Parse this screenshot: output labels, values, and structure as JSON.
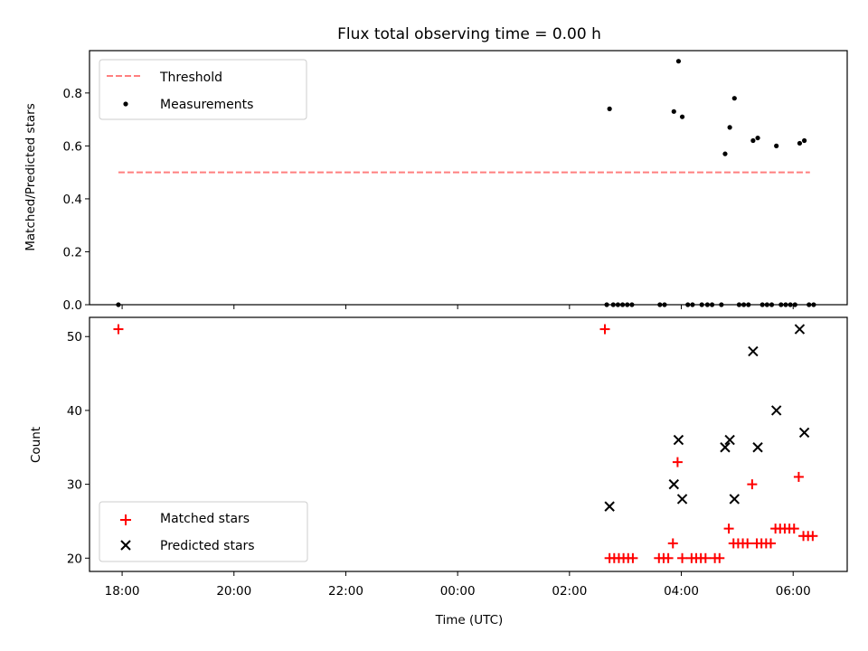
{
  "chart_data": [
    {
      "type": "scatter",
      "title": "Flux total observing time = 0.00 h",
      "xlabel": "",
      "ylabel": "Matched/Predicted stars",
      "xlim": [
        "17:25",
        "06:58"
      ],
      "ylim": [
        0,
        0.96
      ],
      "yticks": [
        0.0,
        0.2,
        0.4,
        0.6,
        0.8
      ],
      "ytick_labels": [
        "0.0",
        "0.2",
        "0.4",
        "0.6",
        "0.8"
      ],
      "grid": false,
      "legend": "upper-left",
      "threshold": {
        "name": "Threshold",
        "y": 0.5,
        "x": [
          "17:56",
          "06:18"
        ],
        "color": "#ff7f7f"
      },
      "series": [
        {
          "name": "Measurements",
          "color": "#000000",
          "marker": "dot",
          "points": [
            [
              "17:56",
              0
            ],
            [
              "02:40",
              0
            ],
            [
              "02:43",
              0.74
            ],
            [
              "02:47",
              0
            ],
            [
              "02:52",
              0
            ],
            [
              "02:57",
              0
            ],
            [
              "03:02",
              0
            ],
            [
              "03:07",
              0
            ],
            [
              "03:37",
              0
            ],
            [
              "03:42",
              0
            ],
            [
              "03:52",
              0.73
            ],
            [
              "03:57",
              0.92
            ],
            [
              "04:01",
              0.71
            ],
            [
              "04:07",
              0
            ],
            [
              "04:12",
              0
            ],
            [
              "04:22",
              0
            ],
            [
              "04:28",
              0
            ],
            [
              "04:33",
              0
            ],
            [
              "04:43",
              0
            ],
            [
              "04:47",
              0.57
            ],
            [
              "04:52",
              0.67
            ],
            [
              "04:57",
              0.78
            ],
            [
              "05:02",
              0
            ],
            [
              "05:07",
              0
            ],
            [
              "05:12",
              0
            ],
            [
              "05:17",
              0.62
            ],
            [
              "05:22",
              0.63
            ],
            [
              "05:27",
              0
            ],
            [
              "05:32",
              0
            ],
            [
              "05:37",
              0
            ],
            [
              "05:42",
              0.6
            ],
            [
              "05:47",
              0
            ],
            [
              "05:52",
              0
            ],
            [
              "05:57",
              0
            ],
            [
              "06:02",
              0
            ],
            [
              "06:07",
              0.61
            ],
            [
              "06:12",
              0.62
            ],
            [
              "06:17",
              0
            ],
            [
              "06:22",
              0
            ]
          ]
        }
      ]
    },
    {
      "type": "scatter",
      "title": "",
      "xlabel": "Time (UTC)",
      "ylabel": "Count",
      "xlim": [
        "17:25",
        "06:58"
      ],
      "ylim": [
        18.2,
        52.6
      ],
      "xticks": [
        "18:00",
        "20:00",
        "22:00",
        "00:00",
        "02:00",
        "04:00",
        "06:00"
      ],
      "yticks": [
        20,
        30,
        40,
        50
      ],
      "ytick_labels": [
        "20",
        "30",
        "40",
        "50"
      ],
      "grid": false,
      "legend": "lower-left",
      "series": [
        {
          "name": "Matched stars",
          "color": "#ff0000",
          "marker": "plus",
          "points": [
            [
              "17:56",
              51
            ],
            [
              "02:38",
              51
            ],
            [
              "02:43",
              20
            ],
            [
              "02:48",
              20
            ],
            [
              "02:53",
              20
            ],
            [
              "02:58",
              20
            ],
            [
              "03:03",
              20
            ],
            [
              "03:08",
              20
            ],
            [
              "03:36",
              20
            ],
            [
              "03:41",
              20
            ],
            [
              "03:46",
              20
            ],
            [
              "03:51",
              22
            ],
            [
              "03:56",
              33
            ],
            [
              "04:01",
              20
            ],
            [
              "04:11",
              20
            ],
            [
              "04:16",
              20
            ],
            [
              "04:21",
              20
            ],
            [
              "04:26",
              20
            ],
            [
              "04:36",
              20
            ],
            [
              "04:41",
              20
            ],
            [
              "04:51",
              24
            ],
            [
              "04:56",
              22
            ],
            [
              "05:01",
              22
            ],
            [
              "05:06",
              22
            ],
            [
              "05:11",
              22
            ],
            [
              "05:16",
              30
            ],
            [
              "05:21",
              22
            ],
            [
              "05:26",
              22
            ],
            [
              "05:31",
              22
            ],
            [
              "05:36",
              22
            ],
            [
              "05:41",
              24
            ],
            [
              "05:46",
              24
            ],
            [
              "05:51",
              24
            ],
            [
              "05:56",
              24
            ],
            [
              "06:01",
              24
            ],
            [
              "06:06",
              31
            ],
            [
              "06:11",
              23
            ],
            [
              "06:16",
              23
            ],
            [
              "06:21",
              23
            ]
          ]
        },
        {
          "name": "Predicted stars",
          "color": "#000000",
          "marker": "x",
          "points": [
            [
              "02:43",
              27
            ],
            [
              "03:52",
              30
            ],
            [
              "03:57",
              36
            ],
            [
              "04:01",
              28
            ],
            [
              "04:47",
              35
            ],
            [
              "04:52",
              36
            ],
            [
              "04:57",
              28
            ],
            [
              "05:17",
              48
            ],
            [
              "05:22",
              35
            ],
            [
              "05:42",
              40
            ],
            [
              "06:07",
              51
            ],
            [
              "06:12",
              37
            ]
          ]
        }
      ]
    }
  ]
}
